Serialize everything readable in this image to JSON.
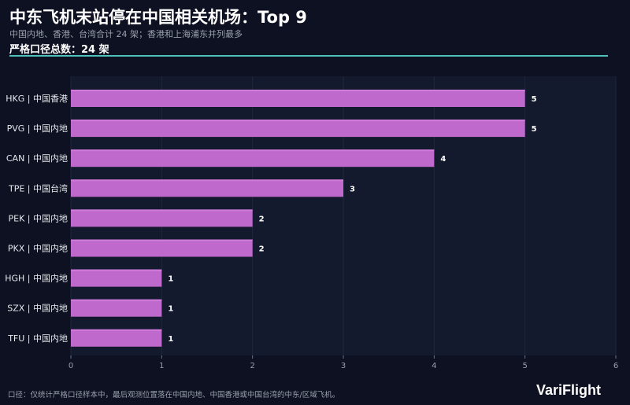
{
  "header": {
    "title": "中东飞机末站停在中国相关机场：Top 9",
    "subtitle": "中国内地、香港、台湾合计 24 架；香港和上海浦东并列最多",
    "total": "严格口径总数：24 架"
  },
  "footer": {
    "note": "口径：仅统计严格口径样本中，最后观测位置落在中国内地、中国香港或中国台湾的中东/区域飞机。",
    "brand": "VariFlight"
  },
  "colors": {
    "bar": "#c069cc",
    "accent": "#4fc1bb",
    "background": "#0d1121"
  },
  "chart_data": {
    "type": "bar",
    "orientation": "horizontal",
    "categories": [
      "HKG | 中国香港",
      "PVG | 中国内地",
      "CAN | 中国内地",
      "TPE | 中国台湾",
      "PEK | 中国内地",
      "PKX | 中国内地",
      "HGH | 中国内地",
      "SZX | 中国内地",
      "TFU | 中国内地"
    ],
    "values": [
      5,
      5,
      4,
      3,
      2,
      2,
      1,
      1,
      1
    ],
    "xlim": [
      0,
      6
    ],
    "xticks": [
      0,
      1,
      2,
      3,
      4,
      5,
      6
    ],
    "grid": true,
    "data_labels": true
  }
}
